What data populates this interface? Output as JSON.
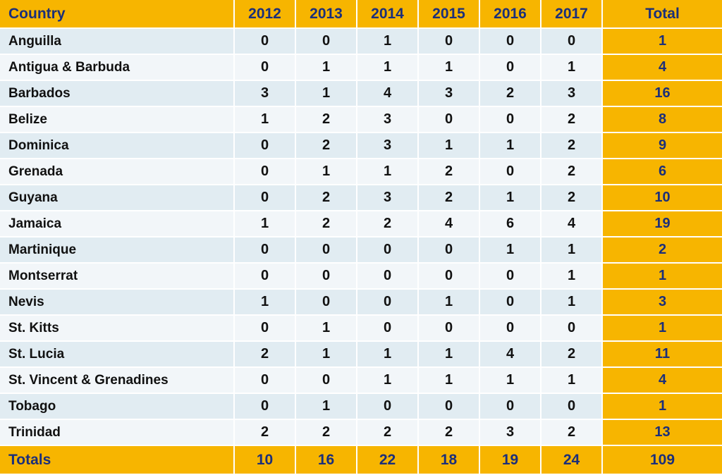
{
  "table": {
    "header": {
      "country": "Country",
      "years": [
        "2012",
        "2013",
        "2014",
        "2015",
        "2016",
        "2017"
      ],
      "total": "Total"
    },
    "rows": [
      {
        "country": "Anguilla",
        "values": [
          "0",
          "0",
          "1",
          "0",
          "0",
          "0"
        ],
        "total": "1"
      },
      {
        "country": "Antigua & Barbuda",
        "values": [
          "0",
          "1",
          "1",
          "1",
          "0",
          "1"
        ],
        "total": "4"
      },
      {
        "country": "Barbados",
        "values": [
          "3",
          "1",
          "4",
          "3",
          "2",
          "3"
        ],
        "total": "16"
      },
      {
        "country": "Belize",
        "values": [
          "1",
          "2",
          "3",
          "0",
          "0",
          "2"
        ],
        "total": "8"
      },
      {
        "country": "Dominica",
        "values": [
          "0",
          "2",
          "3",
          "1",
          "1",
          "2"
        ],
        "total": "9"
      },
      {
        "country": "Grenada",
        "values": [
          "0",
          "1",
          "1",
          "2",
          "0",
          "2"
        ],
        "total": "6"
      },
      {
        "country": "Guyana",
        "values": [
          "0",
          "2",
          "3",
          "2",
          "1",
          "2"
        ],
        "total": "10"
      },
      {
        "country": "Jamaica",
        "values": [
          "1",
          "2",
          "2",
          "4",
          "6",
          "4"
        ],
        "total": "19"
      },
      {
        "country": "Martinique",
        "values": [
          "0",
          "0",
          "0",
          "0",
          "1",
          "1"
        ],
        "total": "2"
      },
      {
        "country": "Montserrat",
        "values": [
          "0",
          "0",
          "0",
          "0",
          "0",
          "1"
        ],
        "total": "1"
      },
      {
        "country": "Nevis",
        "values": [
          "1",
          "0",
          "0",
          "1",
          "0",
          "1"
        ],
        "total": "3"
      },
      {
        "country": "St. Kitts",
        "values": [
          "0",
          "1",
          "0",
          "0",
          "0",
          "0"
        ],
        "total": "1"
      },
      {
        "country": "St. Lucia",
        "values": [
          "2",
          "1",
          "1",
          "1",
          "4",
          "2"
        ],
        "total": "11"
      },
      {
        "country": "St. Vincent & Grenadines",
        "values": [
          "0",
          "0",
          "1",
          "1",
          "1",
          "1"
        ],
        "total": "4"
      },
      {
        "country": "Tobago",
        "values": [
          "0",
          "1",
          "0",
          "0",
          "0",
          "0"
        ],
        "total": "1"
      },
      {
        "country": "Trinidad",
        "values": [
          "2",
          "2",
          "2",
          "2",
          "3",
          "2"
        ],
        "total": "13"
      }
    ],
    "footer": {
      "label": "Totals",
      "values": [
        "10",
        "16",
        "22",
        "18",
        "19",
        "24"
      ],
      "total": "109"
    }
  },
  "colors": {
    "header_bg": "#f7b500",
    "header_text": "#1b2f7a",
    "row_odd": "#e1ecf2",
    "row_even": "#f2f6f9",
    "body_text": "#111111"
  }
}
